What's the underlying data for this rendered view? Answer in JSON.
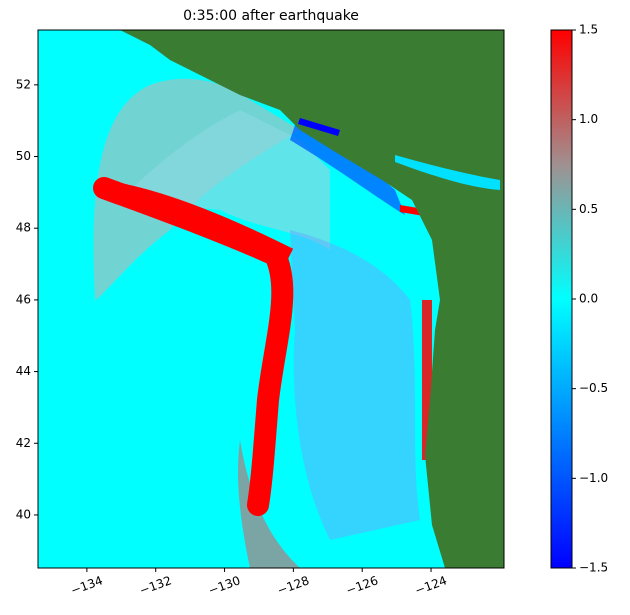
{
  "chart_data": {
    "type": "heatmap",
    "title": "0:35:00 after earthquake",
    "xlim": [
      -135.42,
      -121.88
    ],
    "ylim": [
      38.52,
      53.53
    ],
    "xticks": [
      {
        "value": -134,
        "label": "−134"
      },
      {
        "value": -132,
        "label": "−132"
      },
      {
        "value": -130,
        "label": "−130"
      },
      {
        "value": -128,
        "label": "−128"
      },
      {
        "value": -126,
        "label": "−126"
      },
      {
        "value": -124,
        "label": "−124"
      }
    ],
    "yticks": [
      40,
      42,
      44,
      46,
      48,
      50,
      52
    ],
    "colorbar": {
      "lim": [
        -1.5,
        1.5
      ],
      "ticks": [
        {
          "value": -1.5,
          "label": "−1.5"
        },
        {
          "value": -1.0,
          "label": "−1.0"
        },
        {
          "value": -0.5,
          "label": "−0.5"
        },
        {
          "value": 0,
          "label": "0.0"
        },
        0.5,
        {
          "value": 1.0,
          "label": "1.0"
        },
        1.5
      ],
      "colors": [
        "#0000ff",
        "#0080ff",
        "#00ffff",
        "#a09090",
        "#ff0000"
      ]
    }
  }
}
